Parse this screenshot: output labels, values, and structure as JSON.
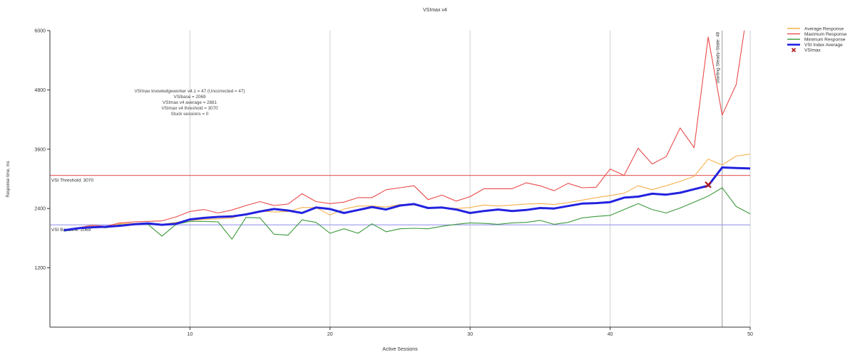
{
  "chart_data": {
    "type": "line",
    "title": "VSImax v4",
    "xlabel": "Active Sessions",
    "ylabel": "Response time, ms",
    "xlim": [
      0,
      50
    ],
    "ylim": [
      0,
      6000
    ],
    "x_ticks": [
      10,
      20,
      30,
      40,
      50
    ],
    "y_ticks": [
      1200,
      2400,
      3600,
      4800,
      6000
    ],
    "grid": "vertical",
    "legend_position": "top-right",
    "legend": [
      "Average Response",
      "Maximum Response",
      "Minimum Response",
      "VSI Index Average",
      "VSImax"
    ],
    "x": [
      1,
      2,
      3,
      4,
      5,
      6,
      7,
      8,
      9,
      10,
      11,
      12,
      13,
      14,
      15,
      16,
      17,
      18,
      19,
      20,
      21,
      22,
      23,
      24,
      25,
      26,
      27,
      28,
      29,
      30,
      31,
      32,
      33,
      34,
      35,
      36,
      37,
      38,
      39,
      40,
      41,
      42,
      43,
      44,
      45,
      46,
      47,
      48,
      49,
      50
    ],
    "series": [
      {
        "name": "Average Response",
        "color": "#f6b04c",
        "values": [
          1960,
          2000,
          2040,
          2020,
          2090,
          2100,
          2110,
          2080,
          2120,
          2160,
          2180,
          2190,
          2210,
          2290,
          2350,
          2330,
          2340,
          2420,
          2420,
          2270,
          2390,
          2450,
          2450,
          2430,
          2480,
          2470,
          2420,
          2420,
          2400,
          2420,
          2470,
          2450,
          2470,
          2490,
          2500,
          2480,
          2520,
          2570,
          2620,
          2660,
          2710,
          2860,
          2780,
          2860,
          2950,
          3050,
          3400,
          3280,
          3460,
          3500
        ]
      },
      {
        "name": "Maximum Response",
        "color": "#ea4a4a",
        "values": [
          1960,
          2010,
          2060,
          2040,
          2110,
          2130,
          2140,
          2150,
          2230,
          2340,
          2380,
          2310,
          2370,
          2460,
          2540,
          2460,
          2490,
          2700,
          2540,
          2500,
          2530,
          2620,
          2620,
          2780,
          2820,
          2860,
          2580,
          2670,
          2550,
          2640,
          2800,
          2800,
          2800,
          2920,
          2860,
          2760,
          2910,
          2820,
          2830,
          3200,
          3070,
          3620,
          3300,
          3450,
          4030,
          3630,
          5870,
          4290,
          4910,
          6800
        ]
      },
      {
        "name": "Minimum Response",
        "color": "#3a9a3a",
        "values": [
          1940,
          1990,
          2030,
          2010,
          2070,
          2080,
          2080,
          1840,
          2080,
          2140,
          2140,
          2130,
          1780,
          2220,
          2210,
          1880,
          1860,
          2170,
          2120,
          1900,
          1990,
          1900,
          2090,
          1930,
          1990,
          2000,
          1990,
          2040,
          2080,
          2110,
          2100,
          2080,
          2110,
          2120,
          2160,
          2080,
          2120,
          2210,
          2240,
          2260,
          2380,
          2500,
          2380,
          2310,
          2410,
          2530,
          2650,
          2820,
          2440,
          2290
        ]
      },
      {
        "name": "VSI Index Average",
        "color": "#2222e0",
        "values": [
          1960,
          2000,
          2020,
          2030,
          2050,
          2080,
          2100,
          2070,
          2090,
          2180,
          2210,
          2230,
          2240,
          2280,
          2340,
          2390,
          2360,
          2310,
          2420,
          2390,
          2310,
          2370,
          2430,
          2380,
          2460,
          2490,
          2410,
          2420,
          2380,
          2310,
          2350,
          2380,
          2350,
          2370,
          2410,
          2400,
          2450,
          2500,
          2510,
          2530,
          2620,
          2640,
          2700,
          2680,
          2720,
          2790,
          2860,
          3230,
          3220,
          3210
        ]
      }
    ],
    "reference_lines": [
      {
        "label": "VSI Threshold: 3070",
        "value": 3070,
        "color": "#e86a6a"
      },
      {
        "label": "VSI Baseline: 2069",
        "value": 2069,
        "color": "#9999ee"
      }
    ],
    "vertical_marker": {
      "label": "Starting Steady-State: 48",
      "x": 48
    },
    "vsimax_point": {
      "x": 47,
      "y": 2880,
      "color": "#b02020"
    },
    "annotation_lines": [
      "VSImax knowledgeworker v4.1 = 47 (Uncorrected = 47)",
      "VSIbase = 2069",
      "VSImax v4 average = 2881",
      "VSImax v4 threshold = 3070",
      "Stuck sessions = 0"
    ]
  }
}
